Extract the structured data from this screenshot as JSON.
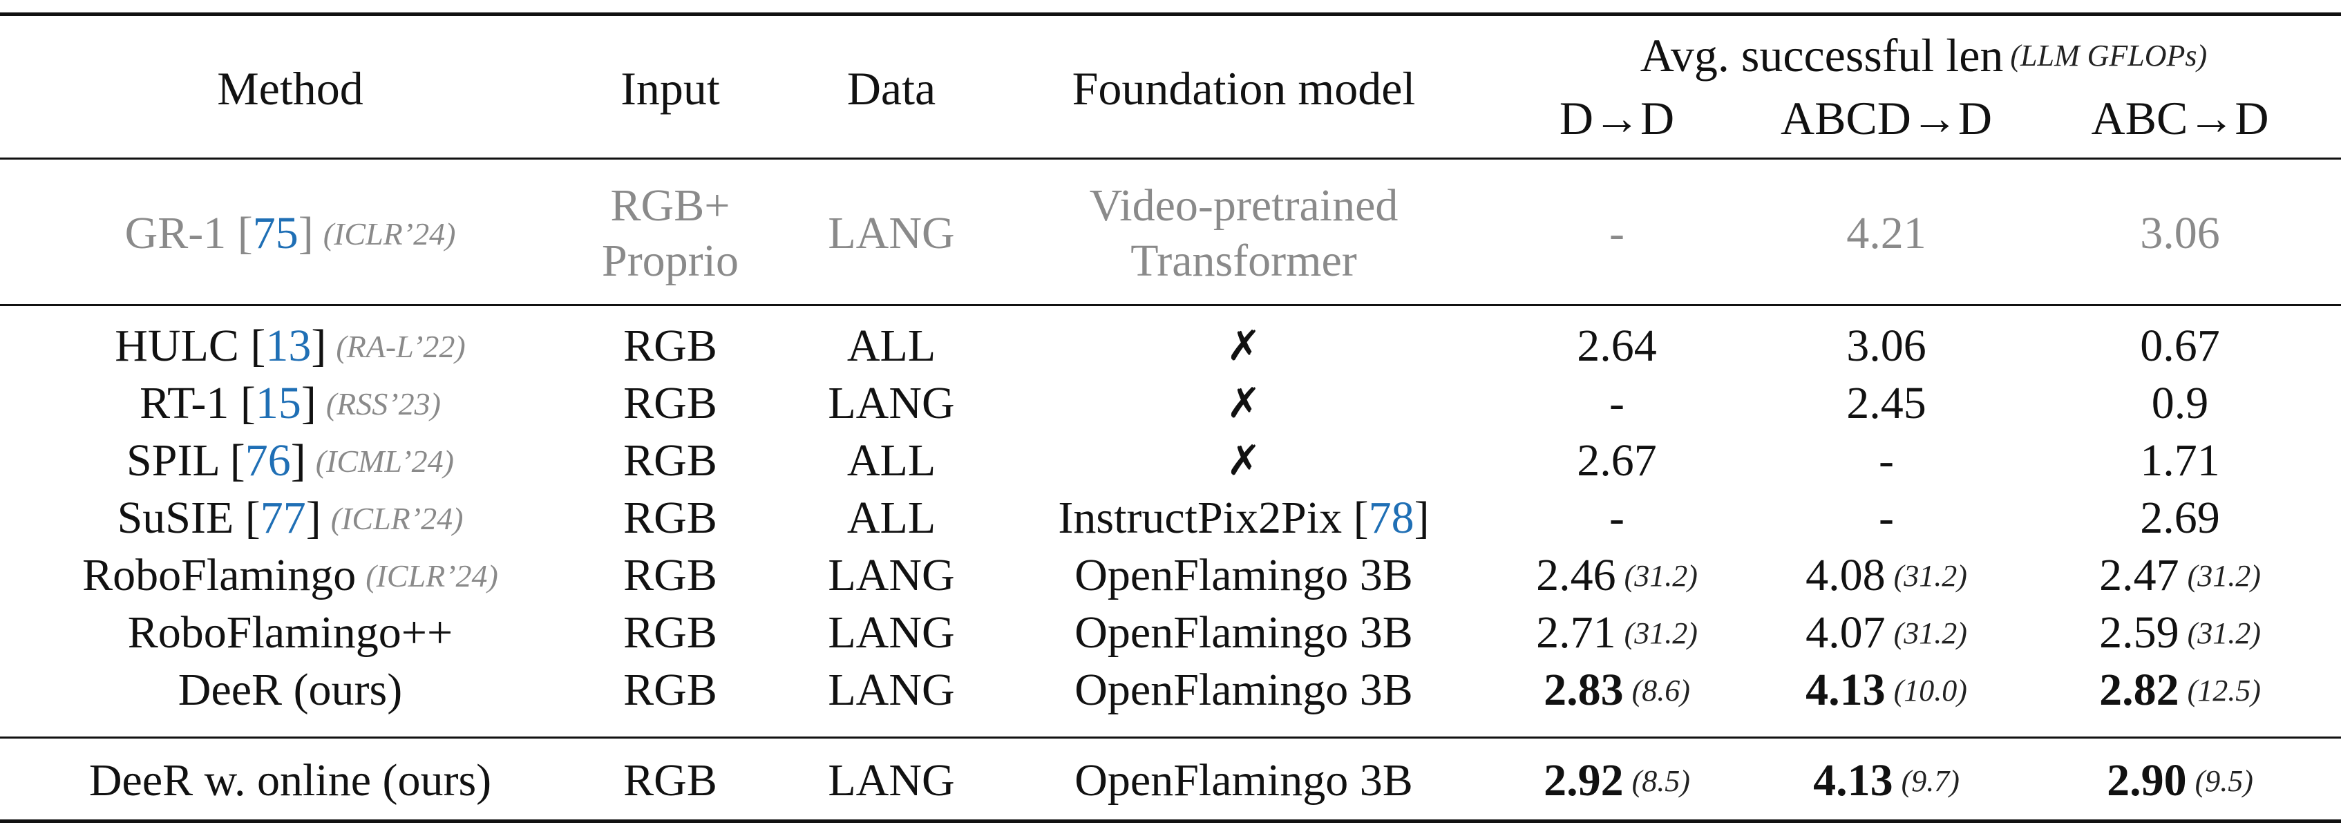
{
  "header": {
    "method": "Method",
    "input": "Input",
    "data": "Data",
    "foundation": "Foundation model",
    "avg_title": "Avg. successful len",
    "avg_note": "(LLM GFLOPs)",
    "col_dd": "D→D",
    "col_abcd_d": "ABCD→D",
    "col_abc_d": "ABC→D"
  },
  "gr1": {
    "method_name": "GR-1 [",
    "ref": "75",
    "close": "]",
    "venue": "(ICLR’24)",
    "input_line1": "RGB+",
    "input_line2": "Proprio",
    "data": "LANG",
    "foundation_line1": "Video-pretrained",
    "foundation_line2": "Transformer",
    "dd": "-",
    "abcd_d": "4.21",
    "abc_d": "3.06"
  },
  "rows": [
    {
      "name": "HULC [",
      "ref": "13",
      "close": "]",
      "venue": "(RA-L’22)",
      "input": "RGB",
      "data": "ALL",
      "foundation": "✗",
      "foundation_ref": "",
      "dd": "2.64",
      "dd_f": "",
      "abcd": "3.06",
      "abcd_f": "",
      "abc": "0.67",
      "abc_f": ""
    },
    {
      "name": "RT-1 [",
      "ref": "15",
      "close": "]",
      "venue": "(RSS’23)",
      "input": "RGB",
      "data": "LANG",
      "foundation": "✗",
      "foundation_ref": "",
      "dd": "-",
      "dd_f": "",
      "abcd": "2.45",
      "abcd_f": "",
      "abc": "0.9",
      "abc_f": ""
    },
    {
      "name": "SPIL [",
      "ref": "76",
      "close": "]",
      "venue": "(ICML’24)",
      "input": "RGB",
      "data": "ALL",
      "foundation": "✗",
      "foundation_ref": "",
      "dd": "2.67",
      "dd_f": "",
      "abcd": "-",
      "abcd_f": "",
      "abc": "1.71",
      "abc_f": ""
    },
    {
      "name": "SuSIE [",
      "ref": "77",
      "close": "]",
      "venue": "(ICLR’24)",
      "input": "RGB",
      "data": "ALL",
      "foundation": "InstructPix2Pix  [",
      "foundation_ref": "78",
      "dd": "-",
      "dd_f": "",
      "abcd": "-",
      "abcd_f": "",
      "abc": "2.69",
      "abc_f": ""
    },
    {
      "name": "RoboFlamingo",
      "ref": "",
      "close": "",
      "venue": "(ICLR’24)",
      "input": "RGB",
      "data": "LANG",
      "foundation": "OpenFlamingo 3B",
      "foundation_ref": "",
      "dd": "2.46",
      "dd_f": "(31.2)",
      "abcd": "4.08",
      "abcd_f": "(31.2)",
      "abc": "2.47",
      "abc_f": "(31.2)"
    },
    {
      "name": "RoboFlamingo++",
      "ref": "",
      "close": "",
      "venue": "",
      "input": "RGB",
      "data": "LANG",
      "foundation": "OpenFlamingo 3B",
      "foundation_ref": "",
      "dd": "2.71",
      "dd_f": "(31.2)",
      "abcd": "4.07",
      "abcd_f": "(31.2)",
      "abc": "2.59",
      "abc_f": "(31.2)"
    },
    {
      "name": "DeeR (ours)",
      "ref": "",
      "close": "",
      "venue": "",
      "input": "RGB",
      "data": "LANG",
      "foundation": "OpenFlamingo 3B",
      "foundation_ref": "",
      "dd": "2.83",
      "dd_f": "(8.6)",
      "abcd": "4.13",
      "abcd_f": "(10.0)",
      "abc": "2.82",
      "abc_f": "(12.5)"
    }
  ],
  "online": {
    "name": "DeeR w. online (ours)",
    "input": "RGB",
    "data": "LANG",
    "foundation": "OpenFlamingo 3B",
    "dd": "2.92",
    "dd_f": "(8.5)",
    "abcd": "4.13",
    "abcd_f": "(9.7)",
    "abc": "2.90",
    "abc_f": "(9.5)"
  }
}
